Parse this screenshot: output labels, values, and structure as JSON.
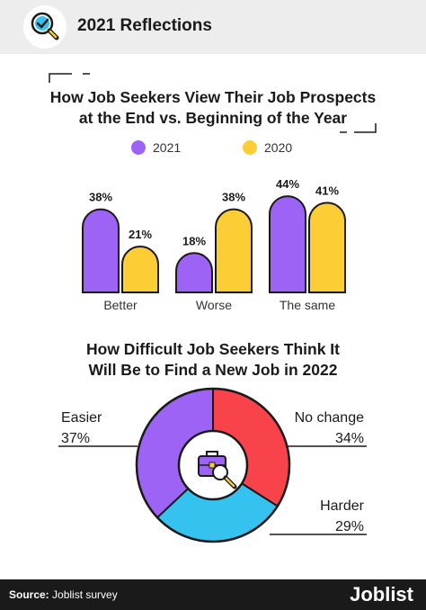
{
  "header": {
    "title": "2021 Reflections",
    "icon": "magnifier-check-icon"
  },
  "colors": {
    "purple": "#9d63f4",
    "yellow": "#fdcd35",
    "red": "#f8434a",
    "blue": "#35c2ef",
    "outline": "#1a1a1a"
  },
  "chart_data": [
    {
      "type": "bar",
      "title": "How Job Seekers View Their Job Prospects at the End vs. Beginning of the Year",
      "title_lines": [
        "How Job Seekers View Their Job Prospects",
        "at the End vs. Beginning of the Year"
      ],
      "categories": [
        "Better",
        "Worse",
        "The same"
      ],
      "series": [
        {
          "name": "2021",
          "values": [
            38,
            18,
            44
          ],
          "labels": [
            "38%",
            "18%",
            "44%"
          ],
          "color": "#9d63f4"
        },
        {
          "name": "2020",
          "values": [
            21,
            38,
            41
          ],
          "labels": [
            "21%",
            "38%",
            "41%"
          ],
          "color": "#fdcd35"
        }
      ],
      "legend": "top-center",
      "grid": false,
      "ylim": [
        0,
        50
      ]
    },
    {
      "type": "pie",
      "style": "donut",
      "title": "How Difficult Job Seekers Think It Will Be to Find a New Job in 2022",
      "title_lines": [
        "How Difficult Job Seekers Think It",
        "Will Be to Find a New Job in 2022"
      ],
      "slices": [
        {
          "label": "No change",
          "value": 34,
          "display": "34%",
          "color": "#f8434a"
        },
        {
          "label": "Harder",
          "value": 29,
          "display": "29%",
          "color": "#35c2ef"
        },
        {
          "label": "Easier",
          "value": 37,
          "display": "37%",
          "color": "#9d63f4"
        }
      ],
      "center_icon": "briefcase-magnifier-icon"
    }
  ],
  "footer": {
    "source_label": "Source:",
    "source_text": " Joblist survey",
    "brand": "Joblist"
  }
}
